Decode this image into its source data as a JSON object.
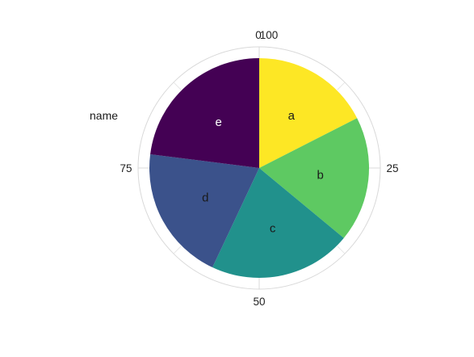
{
  "chart_data": {
    "type": "pie",
    "projection": "polar",
    "ylabel": "name",
    "angle_axis_ticks": [
      "0",
      "25",
      "50",
      "75",
      "100"
    ],
    "angle_range": [
      0,
      100
    ],
    "grid": true,
    "legend": "none",
    "slices": [
      {
        "label": "a",
        "value": 17.5,
        "color": "#FDE725"
      },
      {
        "label": "b",
        "value": 18.5,
        "color": "#5EC962"
      },
      {
        "label": "c",
        "value": 21.0,
        "color": "#21918C"
      },
      {
        "label": "d",
        "value": 20.0,
        "color": "#3B528B"
      },
      {
        "label": "e",
        "value": 23.0,
        "color": "#440154"
      }
    ]
  }
}
